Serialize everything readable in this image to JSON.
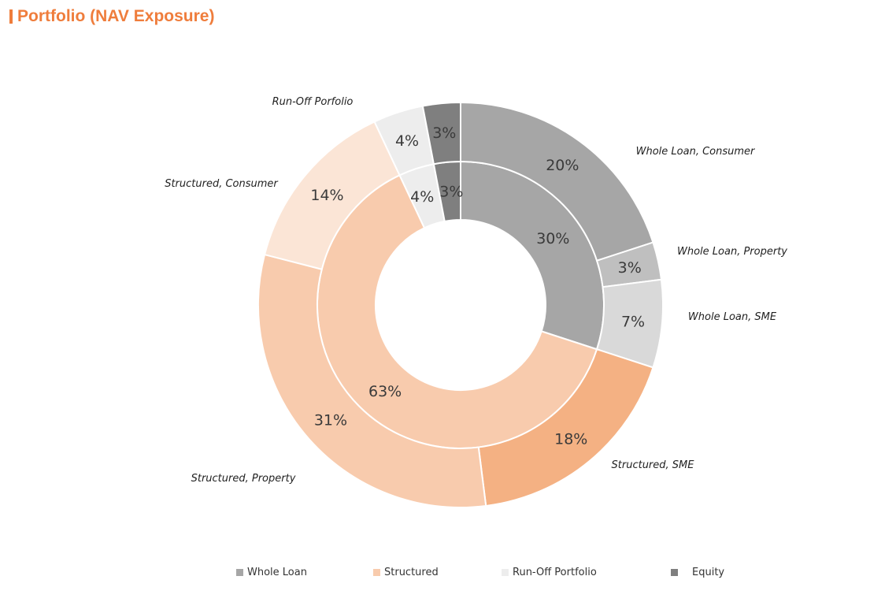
{
  "title": "Portfolio (NAV Exposure)",
  "colors": {
    "title": "#ef7d3c",
    "whole_loan_consumer": "#a6a6a6",
    "whole_loan_property": "#bfbfbf",
    "whole_loan_sme": "#d9d9d9",
    "structured_sme": "#f4b183",
    "structured_property": "#f8cbad",
    "structured_consumer": "#fbe5d6",
    "run_off": "#ededed",
    "equity": "#7f7f7f",
    "inner_whole_loan": "#a6a6a6",
    "inner_structured": "#f8cbad",
    "inner_run_off": "#ededed",
    "inner_equity": "#7f7f7f"
  },
  "chart_data": {
    "type": "donut",
    "title": "Portfolio (NAV Exposure)",
    "rings": [
      {
        "name": "inner",
        "slices": [
          {
            "category": "Whole Loan",
            "value": 30,
            "label": "30%",
            "color_key": "inner_whole_loan"
          },
          {
            "category": "Structured",
            "value": 63,
            "label": "63%",
            "color_key": "inner_structured"
          },
          {
            "category": "Run-Off Portfolio",
            "value": 4,
            "label": "4%",
            "color_key": "inner_run_off"
          },
          {
            "category": "Equity",
            "value": 3,
            "label": "3%",
            "color_key": "inner_equity"
          }
        ]
      },
      {
        "name": "outer",
        "slices": [
          {
            "category": "Whole Loan, Consumer",
            "value": 20,
            "label": "20%",
            "color_key": "whole_loan_consumer"
          },
          {
            "category": "Whole Loan, Property",
            "value": 3,
            "label": "3%",
            "color_key": "whole_loan_property"
          },
          {
            "category": "Whole Loan, SME",
            "value": 7,
            "label": "7%",
            "color_key": "whole_loan_sme"
          },
          {
            "category": "Structured, SME",
            "value": 18,
            "label": "18%",
            "color_key": "structured_sme"
          },
          {
            "category": "Structured, Property",
            "value": 31,
            "label": "31%",
            "color_key": "structured_property"
          },
          {
            "category": "Structured, Consumer",
            "value": 14,
            "label": "14%",
            "color_key": "structured_consumer"
          },
          {
            "category": "Run-Off Porfolio",
            "value": 4,
            "label": "4%",
            "color_key": "run_off"
          },
          {
            "category": "Equity",
            "value": 3,
            "label": "3%",
            "color_key": "equity"
          }
        ]
      }
    ],
    "outer_category_labels": [
      {
        "text": "Whole Loan, Consumer",
        "slice": 0
      },
      {
        "text": "Whole Loan, Property",
        "slice": 1
      },
      {
        "text": "Whole Loan, SME",
        "slice": 2
      },
      {
        "text": "Structured, SME",
        "slice": 3
      },
      {
        "text": "Structured, Property",
        "slice": 4
      },
      {
        "text": "Structured, Consumer",
        "slice": 5
      },
      {
        "text": "Run-Off Porfolio",
        "slice": 6
      }
    ],
    "legend": {
      "placement": "bottom",
      "entries": [
        {
          "label": "Whole Loan",
          "color_key": "inner_whole_loan"
        },
        {
          "label": "Structured",
          "color_key": "inner_structured"
        },
        {
          "label": "Run-Off Portfolio",
          "color_key": "inner_run_off"
        },
        {
          "label": "Equity",
          "color_key": "inner_equity"
        }
      ]
    }
  }
}
